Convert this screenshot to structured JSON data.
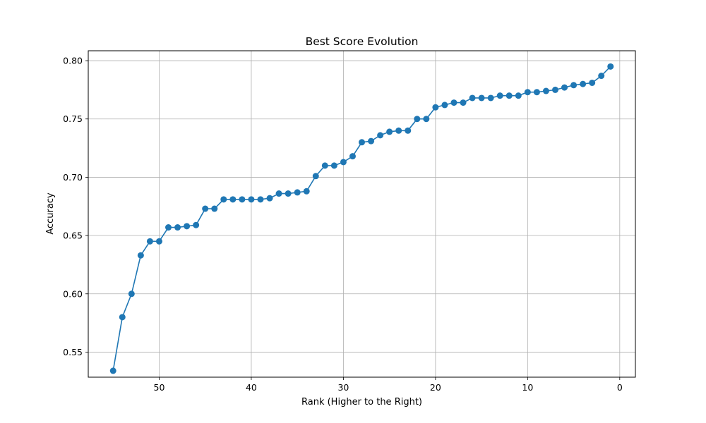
{
  "chart_data": {
    "type": "line",
    "title": "Best Score Evolution",
    "xlabel": "Rank (Higher to the Right)",
    "ylabel": "Accuracy",
    "xlim": [
      57.7,
      -1.7
    ],
    "ylim": [
      0.5285,
      0.8085
    ],
    "x_inverted": true,
    "grid": true,
    "marker": "circle",
    "color": "#1f77b4",
    "xticks": [
      50,
      40,
      30,
      20,
      10,
      0
    ],
    "yticks": [
      0.55,
      0.6,
      0.65,
      0.7,
      0.75,
      0.8
    ],
    "xtick_labels": [
      "50",
      "40",
      "30",
      "20",
      "10",
      "0"
    ],
    "ytick_labels": [
      "0.55",
      "0.60",
      "0.65",
      "0.70",
      "0.75",
      "0.80"
    ],
    "series": [
      {
        "x": [
          55,
          54,
          53,
          52,
          51,
          50,
          49,
          48,
          47,
          46,
          45,
          44,
          43,
          42,
          41,
          40,
          39,
          38,
          37,
          36,
          35,
          34,
          33,
          32,
          31,
          30,
          29,
          28,
          27,
          26,
          25,
          24,
          23,
          22,
          21,
          20,
          19,
          18,
          17,
          16,
          15,
          14,
          13,
          12,
          11,
          10,
          9,
          8,
          7,
          6,
          5,
          4,
          3,
          2,
          1
        ],
        "y": [
          0.534,
          0.58,
          0.6,
          0.633,
          0.645,
          0.645,
          0.657,
          0.657,
          0.658,
          0.659,
          0.673,
          0.673,
          0.681,
          0.681,
          0.681,
          0.681,
          0.681,
          0.682,
          0.686,
          0.686,
          0.687,
          0.688,
          0.701,
          0.71,
          0.71,
          0.713,
          0.718,
          0.73,
          0.731,
          0.736,
          0.739,
          0.74,
          0.74,
          0.75,
          0.75,
          0.76,
          0.762,
          0.764,
          0.764,
          0.768,
          0.768,
          0.768,
          0.77,
          0.77,
          0.77,
          0.773,
          0.773,
          0.774,
          0.775,
          0.777,
          0.779,
          0.78,
          0.781,
          0.787,
          0.795
        ]
      }
    ]
  }
}
